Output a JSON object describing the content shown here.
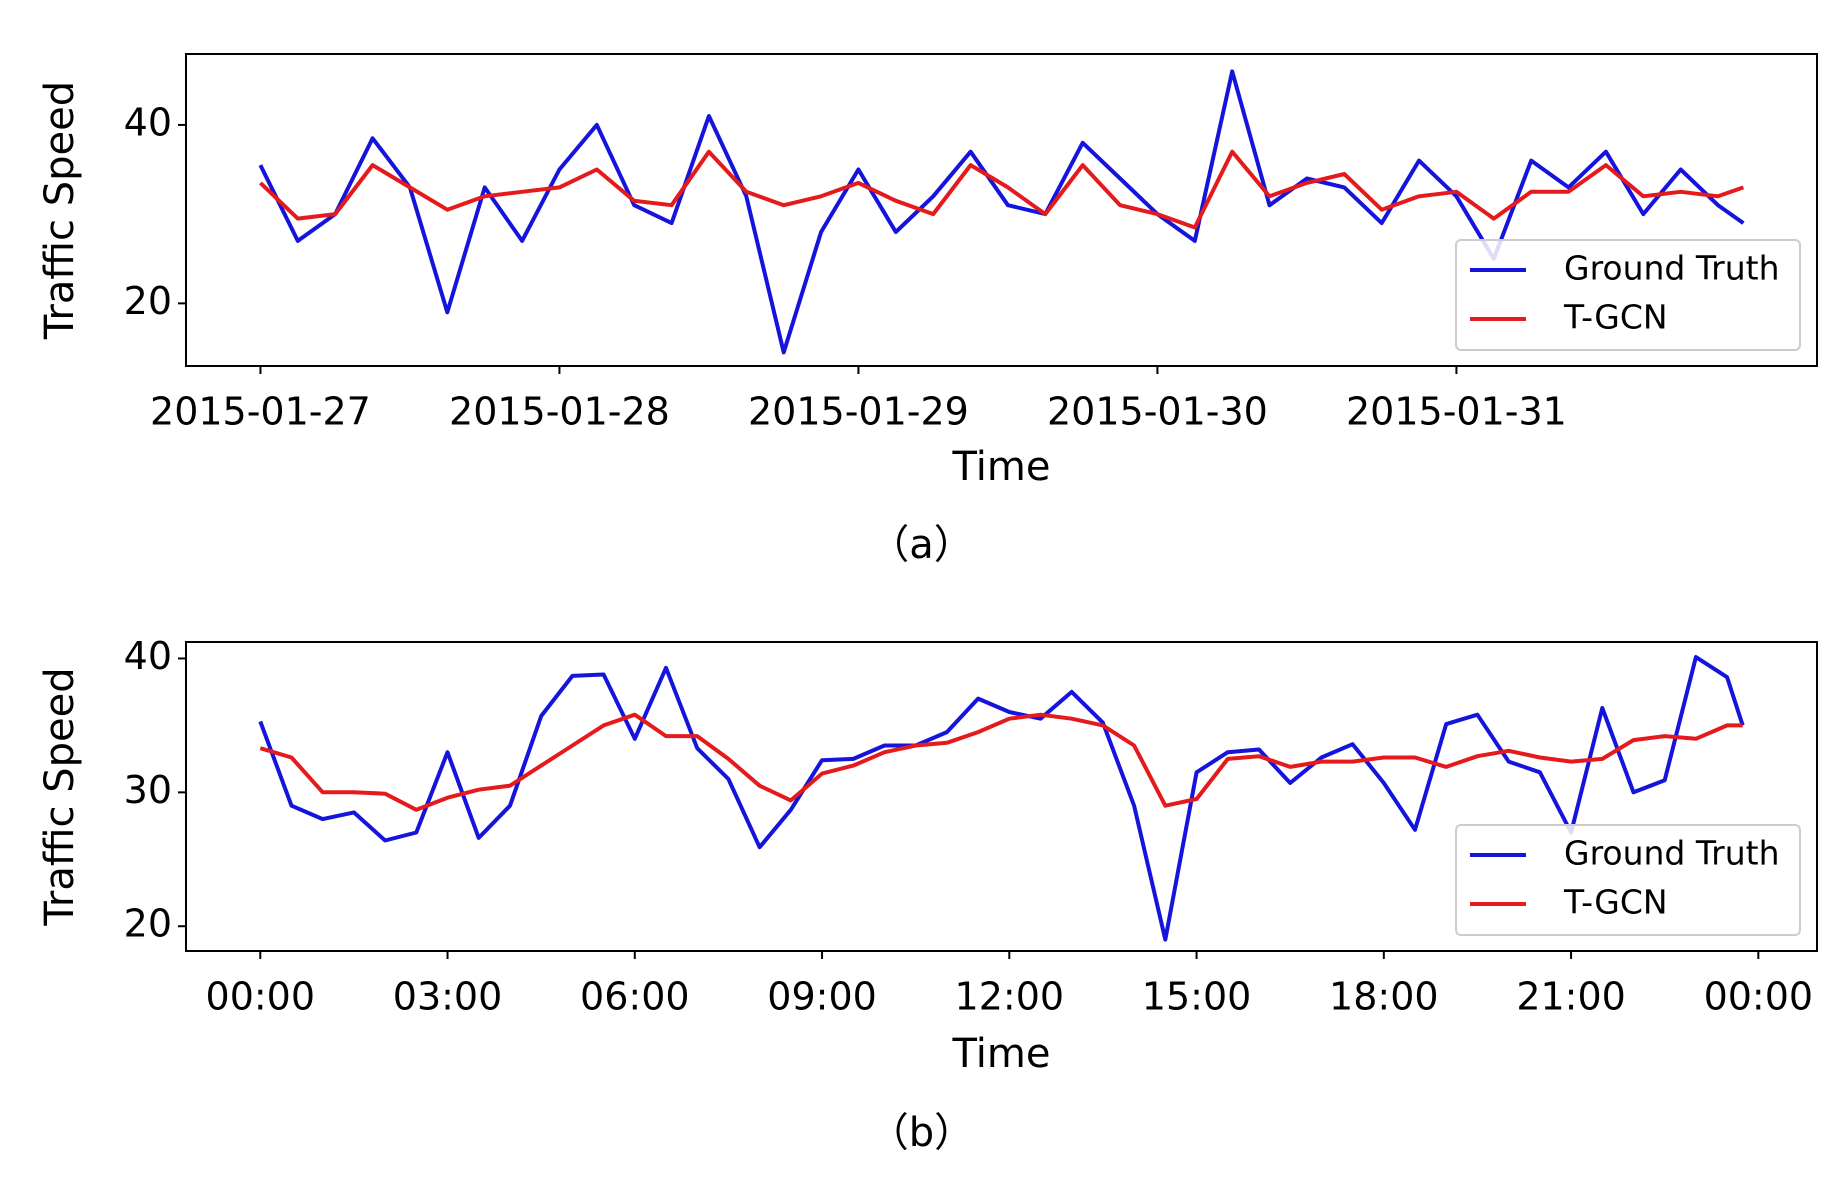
{
  "chart_data": [
    {
      "type": "line",
      "caption": "（a）",
      "xlabel": "Time",
      "ylabel": "Traffic Speed",
      "x": [
        0,
        0.125,
        0.25,
        0.375,
        0.5,
        0.625,
        0.75,
        0.875,
        1,
        1.125,
        1.25,
        1.375,
        1.5,
        1.625,
        1.75,
        1.875,
        2,
        2.125,
        2.25,
        2.375,
        2.5,
        2.625,
        2.75,
        2.875,
        3,
        3.125,
        3.25,
        3.375,
        3.5,
        3.625,
        3.75,
        3.875,
        4,
        4.125,
        4.25,
        4.375,
        4.5,
        4.625,
        4.75,
        4.875,
        4.96
      ],
      "series": [
        {
          "name": "Ground Truth",
          "color": "#1414dc",
          "values": [
            35.5,
            27,
            30,
            38.5,
            33,
            19,
            33,
            27,
            35,
            40,
            31,
            29,
            41,
            32,
            14.5,
            28,
            35,
            28,
            32,
            37,
            31,
            30,
            38,
            34,
            30,
            27,
            46,
            31,
            34,
            33,
            29,
            36,
            32,
            25,
            36,
            33,
            37,
            30,
            35,
            31,
            29
          ]
        },
        {
          "name": "T-GCN",
          "color": "#e41a1c",
          "values": [
            33.5,
            29.5,
            30,
            35.5,
            33,
            30.5,
            32,
            32.5,
            33,
            35,
            31.5,
            31,
            37,
            32.5,
            31,
            32,
            33.5,
            31.5,
            30,
            35.5,
            33,
            30,
            35.5,
            31,
            30,
            28.5,
            37,
            32,
            33.5,
            34.5,
            30.5,
            32,
            32.5,
            29.5,
            32.5,
            32.5,
            35.5,
            32,
            32.5,
            32,
            33
          ]
        }
      ],
      "xlim": [
        -0.249,
        5.206
      ],
      "xticks": [
        {
          "value": 0,
          "label": "2015-01-27"
        },
        {
          "value": 1,
          "label": "2015-01-28"
        },
        {
          "value": 2,
          "label": "2015-01-29"
        },
        {
          "value": 3,
          "label": "2015-01-30"
        },
        {
          "value": 4,
          "label": "2015-01-31"
        }
      ],
      "ylim": [
        12.98,
        47.95
      ],
      "yticks": [
        20,
        40
      ],
      "legend": "lower right"
    },
    {
      "type": "line",
      "caption": "（b）",
      "xlabel": "Time",
      "ylabel": "Traffic Speed",
      "x": [
        0,
        0.5,
        1,
        1.5,
        2,
        2.5,
        3,
        3.5,
        4,
        4.5,
        5,
        5.5,
        6,
        6.5,
        7,
        7.5,
        8,
        8.5,
        9,
        9.5,
        10,
        10.5,
        11,
        11.5,
        12,
        12.5,
        13,
        13.5,
        14,
        14.5,
        15,
        15.5,
        16,
        16.5,
        17,
        17.5,
        18,
        18.5,
        19,
        19.5,
        20,
        20.5,
        21,
        21.5,
        22,
        22.5,
        23,
        23.5,
        23.75
      ],
      "series": [
        {
          "name": "Ground Truth",
          "color": "#1414dc",
          "values": [
            35.3,
            29,
            28,
            28.5,
            26.4,
            27,
            33,
            26.6,
            29,
            35.7,
            38.7,
            38.8,
            34,
            39.3,
            33.3,
            31,
            25.9,
            28.7,
            32.4,
            32.5,
            33.5,
            33.5,
            34.5,
            37,
            36,
            35.5,
            37.5,
            35.2,
            29,
            19,
            31.5,
            33,
            33.2,
            30.7,
            32.6,
            33.6,
            30.7,
            27.2,
            35.1,
            35.8,
            32.3,
            31.5,
            27,
            36.3,
            30,
            30.9,
            40.1,
            38.6,
            35
          ]
        },
        {
          "name": "T-GCN",
          "color": "#e41a1c",
          "values": [
            33.3,
            32.6,
            30,
            30,
            29.9,
            28.7,
            29.6,
            30.2,
            30.5,
            32,
            33.5,
            35,
            35.8,
            34.2,
            34.2,
            32.5,
            30.5,
            29.4,
            31.4,
            32,
            33,
            33.5,
            33.7,
            34.5,
            35.5,
            35.8,
            35.5,
            35,
            33.5,
            29,
            29.5,
            32.5,
            32.7,
            31.9,
            32.3,
            32.3,
            32.6,
            32.6,
            31.9,
            32.7,
            33.1,
            32.6,
            32.3,
            32.5,
            33.9,
            34.2,
            34,
            35,
            35
          ]
        }
      ],
      "xlim": [
        -1.19,
        24.94
      ],
      "xticks": [
        {
          "value": 0,
          "label": "00:00"
        },
        {
          "value": 3,
          "label": "03:00"
        },
        {
          "value": 6,
          "label": "06:00"
        },
        {
          "value": 9,
          "label": "09:00"
        },
        {
          "value": 12,
          "label": "12:00"
        },
        {
          "value": 15,
          "label": "15:00"
        },
        {
          "value": 18,
          "label": "18:00"
        },
        {
          "value": 21,
          "label": "21:00"
        },
        {
          "value": 24,
          "label": "00:00"
        }
      ],
      "ylim": [
        18.15,
        41.23
      ],
      "yticks": [
        20,
        30,
        40
      ],
      "legend": "lower right"
    }
  ]
}
